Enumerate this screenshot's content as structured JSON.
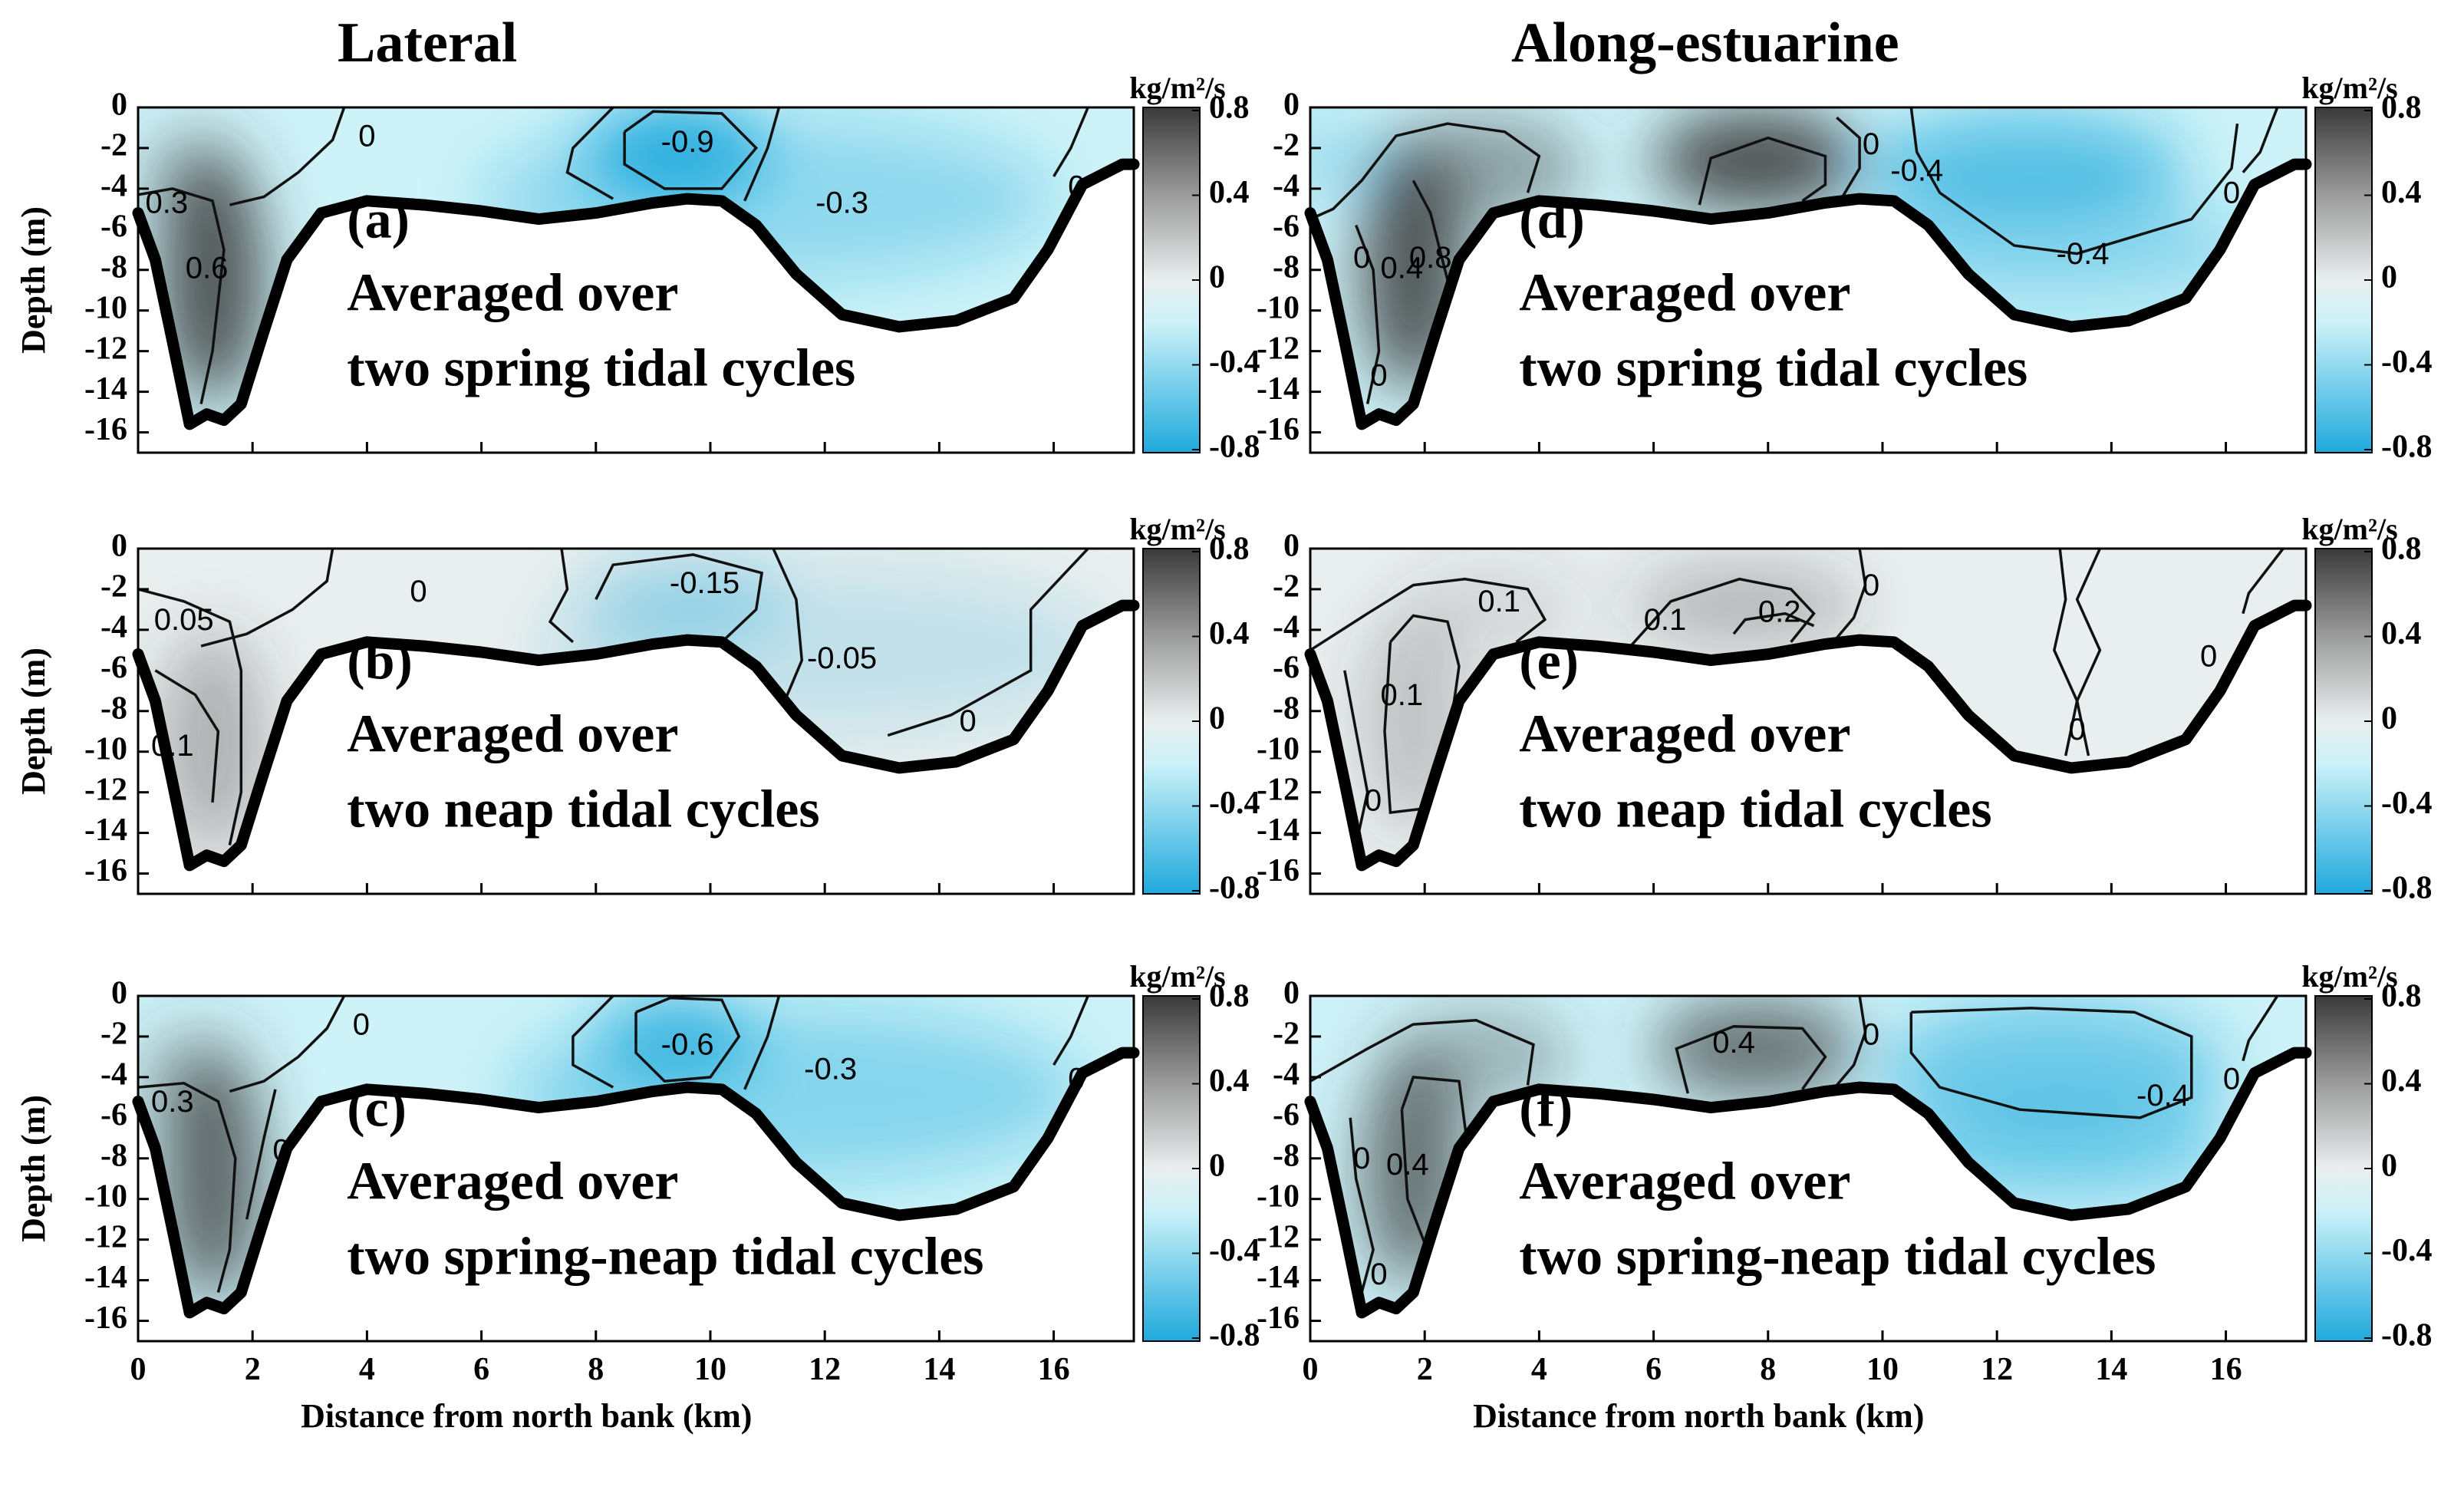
{
  "columns": [
    "Lateral",
    "Along-estuarine"
  ],
  "colorbar_unit": "kg/m²/s",
  "colorbar_ticks": [
    "0.8",
    "0.4",
    "0",
    "-0.4",
    "-0.8"
  ],
  "colors": {
    "positive_max": "#3a3a3a",
    "zero": "#e9eeee",
    "near_zero_negative": "#cdf2f8",
    "negative_max": "#1fa9dc",
    "bathymetry": "#000000"
  },
  "chart_data": [
    {
      "type": "heatmap",
      "panel": "(a)",
      "column": "Lateral",
      "annotation": [
        "Averaged over",
        "two spring tidal cycles"
      ],
      "xlabel": "",
      "ylabel": "Depth (m)",
      "xlim": [
        0,
        17.4
      ],
      "ylim": [
        -17,
        0
      ],
      "xticks": [
        "0",
        "2",
        "4",
        "6",
        "8",
        "10",
        "12",
        "14",
        "16"
      ],
      "yticks": [
        "0",
        "-2",
        "-4",
        "-6",
        "-8",
        "-10",
        "-12",
        "-14",
        "-16"
      ],
      "contour_labels": [
        {
          "text": "0",
          "x": 4.0,
          "y": -1.5
        },
        {
          "text": "-0.9",
          "x": 9.6,
          "y": -1.8
        },
        {
          "text": "-0.3",
          "x": 12.3,
          "y": -4.8
        },
        {
          "text": "0.3",
          "x": 0.5,
          "y": -4.8
        },
        {
          "text": "0.6",
          "x": 1.2,
          "y": -8.0
        },
        {
          "text": "0",
          "x": 16.4,
          "y": -4.0
        }
      ],
      "max_value": 0.8,
      "min_value": -0.9
    },
    {
      "type": "heatmap",
      "panel": "(b)",
      "column": "Lateral",
      "annotation": [
        "Averaged over",
        "two neap tidal cycles"
      ],
      "xlabel": "",
      "ylabel": "Depth (m)",
      "xlim": [
        0,
        17.4
      ],
      "ylim": [
        -17,
        0
      ],
      "xticks": [
        "0",
        "2",
        "4",
        "6",
        "8",
        "10",
        "12",
        "14",
        "16"
      ],
      "yticks": [
        "0",
        "-2",
        "-4",
        "-6",
        "-8",
        "-10",
        "-12",
        "-14",
        "-16"
      ],
      "contour_labels": [
        {
          "text": "0.05",
          "x": 0.8,
          "y": -3.6
        },
        {
          "text": "0",
          "x": 4.9,
          "y": -2.2
        },
        {
          "text": "-0.15",
          "x": 9.9,
          "y": -1.8
        },
        {
          "text": "-0.05",
          "x": 12.3,
          "y": -5.5
        },
        {
          "text": "0",
          "x": 14.5,
          "y": -8.6
        },
        {
          "text": "0.1",
          "x": 0.6,
          "y": -9.8
        }
      ],
      "max_value": 0.2,
      "min_value": -0.2
    },
    {
      "type": "heatmap",
      "panel": "(c)",
      "column": "Lateral",
      "annotation": [
        "Averaged over",
        "two spring-neap tidal cycles"
      ],
      "xlabel": "Distance from north bank (km)",
      "ylabel": "Depth (m)",
      "xlim": [
        0,
        17.4
      ],
      "ylim": [
        -17,
        0
      ],
      "xticks": [
        "0",
        "2",
        "4",
        "6",
        "8",
        "10",
        "12",
        "14",
        "16"
      ],
      "yticks": [
        "0",
        "-2",
        "-4",
        "-6",
        "-8",
        "-10",
        "-12",
        "-14",
        "-16"
      ],
      "contour_labels": [
        {
          "text": "0",
          "x": 3.9,
          "y": -1.5
        },
        {
          "text": "-0.6",
          "x": 9.6,
          "y": -2.5
        },
        {
          "text": "-0.3",
          "x": 12.1,
          "y": -3.7
        },
        {
          "text": "0.3",
          "x": 0.6,
          "y": -5.3
        },
        {
          "text": "0",
          "x": 2.5,
          "y": -7.7
        },
        {
          "text": "0",
          "x": 16.4,
          "y": -4.2
        }
      ],
      "max_value": 0.7,
      "min_value": -0.7
    },
    {
      "type": "heatmap",
      "panel": "(d)",
      "column": "Along-estuarine",
      "annotation": [
        "Averaged over",
        "two spring tidal cycles"
      ],
      "xlabel": "",
      "ylabel": "",
      "xlim": [
        0,
        17.4
      ],
      "ylim": [
        -17,
        0
      ],
      "xticks": [
        "0",
        "2",
        "4",
        "6",
        "8",
        "10",
        "12",
        "14",
        "16"
      ],
      "yticks": [
        "0",
        "-2",
        "-4",
        "-6",
        "-8",
        "-10",
        "-12",
        "-14",
        "-16"
      ],
      "contour_labels": [
        {
          "text": "0",
          "x": 0.9,
          "y": -7.5
        },
        {
          "text": "0.4",
          "x": 1.6,
          "y": -8.0
        },
        {
          "text": "0.8",
          "x": 2.1,
          "y": -7.5
        },
        {
          "text": "0",
          "x": 1.2,
          "y": -13.3
        },
        {
          "text": "0",
          "x": 9.8,
          "y": -1.9
        },
        {
          "text": "-0.4",
          "x": 10.6,
          "y": -3.2
        },
        {
          "text": "-0.4",
          "x": 13.5,
          "y": -7.3
        },
        {
          "text": "0",
          "x": 16.1,
          "y": -4.3
        }
      ],
      "max_value": 0.9,
      "min_value": -0.6
    },
    {
      "type": "heatmap",
      "panel": "(e)",
      "column": "Along-estuarine",
      "annotation": [
        "Averaged over",
        "two neap tidal cycles"
      ],
      "xlabel": "",
      "ylabel": "",
      "xlim": [
        0,
        17.4
      ],
      "ylim": [
        -17,
        0
      ],
      "xticks": [
        "0",
        "2",
        "4",
        "6",
        "8",
        "10",
        "12",
        "14",
        "16"
      ],
      "yticks": [
        "0",
        "-2",
        "-4",
        "-6",
        "-8",
        "-10",
        "-12",
        "-14",
        "-16"
      ],
      "contour_labels": [
        {
          "text": "0.1",
          "x": 3.3,
          "y": -2.7
        },
        {
          "text": "0.1",
          "x": 6.2,
          "y": -3.6
        },
        {
          "text": "0.2",
          "x": 8.2,
          "y": -3.2
        },
        {
          "text": "0",
          "x": 9.8,
          "y": -1.9
        },
        {
          "text": "0.1",
          "x": 1.6,
          "y": -7.3
        },
        {
          "text": "0",
          "x": 1.1,
          "y": -12.5
        },
        {
          "text": "0",
          "x": 15.7,
          "y": -5.4
        },
        {
          "text": "0",
          "x": 13.4,
          "y": -9.0
        }
      ],
      "max_value": 0.25,
      "min_value": -0.05
    },
    {
      "type": "heatmap",
      "panel": "(f)",
      "column": "Along-estuarine",
      "annotation": [
        "Averaged over",
        "two spring-neap tidal cycles"
      ],
      "xlabel": "Distance from north bank (km)",
      "ylabel": "",
      "xlim": [
        0,
        17.4
      ],
      "ylim": [
        -17,
        0
      ],
      "xticks": [
        "0",
        "2",
        "4",
        "6",
        "8",
        "10",
        "12",
        "14",
        "16"
      ],
      "yticks": [
        "0",
        "-2",
        "-4",
        "-6",
        "-8",
        "-10",
        "-12",
        "-14",
        "-16"
      ],
      "contour_labels": [
        {
          "text": "0",
          "x": 0.9,
          "y": -8.1
        },
        {
          "text": "0.4",
          "x": 1.7,
          "y": -8.4
        },
        {
          "text": "0.4",
          "x": 7.4,
          "y": -2.4
        },
        {
          "text": "0",
          "x": 9.8,
          "y": -2.0
        },
        {
          "text": "-0.4",
          "x": 14.9,
          "y": -5.0
        },
        {
          "text": "0",
          "x": 16.1,
          "y": -4.2
        },
        {
          "text": "0",
          "x": 1.2,
          "y": -13.8
        }
      ],
      "max_value": 0.6,
      "min_value": -0.5
    }
  ],
  "bathymetry_km_m": [
    [
      0,
      -5.2
    ],
    [
      0.3,
      -7.5
    ],
    [
      0.6,
      -11.5
    ],
    [
      0.9,
      -15.6
    ],
    [
      1.2,
      -15.1
    ],
    [
      1.5,
      -15.4
    ],
    [
      1.8,
      -14.6
    ],
    [
      2.2,
      -11.0
    ],
    [
      2.6,
      -7.5
    ],
    [
      3.2,
      -5.2
    ],
    [
      4.0,
      -4.6
    ],
    [
      5.0,
      -4.8
    ],
    [
      6.0,
      -5.1
    ],
    [
      7.0,
      -5.5
    ],
    [
      8.0,
      -5.2
    ],
    [
      9.0,
      -4.7
    ],
    [
      9.6,
      -4.5
    ],
    [
      10.2,
      -4.6
    ],
    [
      10.8,
      -5.8
    ],
    [
      11.5,
      -8.2
    ],
    [
      12.3,
      -10.2
    ],
    [
      13.3,
      -10.8
    ],
    [
      14.3,
      -10.5
    ],
    [
      15.3,
      -9.4
    ],
    [
      15.9,
      -7.0
    ],
    [
      16.5,
      -3.8
    ],
    [
      17.2,
      -2.8
    ],
    [
      17.4,
      -2.8
    ]
  ]
}
